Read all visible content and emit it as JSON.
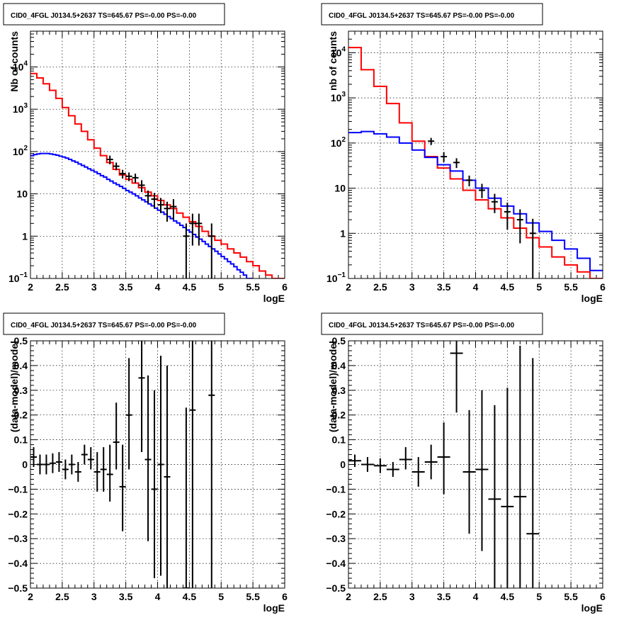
{
  "chart_data": [
    {
      "id": "tl",
      "type": "line",
      "title": "CID0_4FGL J0134.5+2637 TS=645.67 PS=-0.00 PS=-0.00",
      "xlabel": "logE",
      "ylabel": "Nb of counts",
      "xlim": [
        2,
        6
      ],
      "ylim": [
        0.1,
        70000
      ],
      "yscale": "log",
      "grid": true,
      "xticks": [
        "2",
        "2.5",
        "3",
        "3.5",
        "4",
        "4.5",
        "5",
        "5.5",
        "6"
      ],
      "yticks": [
        {
          "value": 0.1,
          "label": "10",
          "sup": "−1"
        },
        {
          "value": 1,
          "label": "1",
          "sup": ""
        },
        {
          "value": 10,
          "label": "10",
          "sup": ""
        },
        {
          "value": 100,
          "label": "10",
          "sup": "2"
        },
        {
          "value": 1000,
          "label": "10",
          "sup": "3"
        },
        {
          "value": 10000,
          "label": "10",
          "sup": "4"
        }
      ],
      "series": [
        {
          "color": "#ff0000",
          "kind": "step",
          "edges_start": 2.0,
          "bin_width": 0.1,
          "values": [
            7000,
            5500,
            4000,
            2800,
            1800,
            1100,
            700,
            450,
            300,
            190,
            120,
            80,
            55,
            38,
            28,
            22,
            18,
            14,
            11,
            9,
            7,
            5.5,
            4.5,
            3.5,
            2.8,
            2.2,
            1.7,
            1.3,
            1.0,
            0.8,
            0.65,
            0.5,
            0.4,
            0.32,
            0.25,
            0.2,
            0.15,
            0.12,
            0.1,
            0.1
          ]
        },
        {
          "color": "#0000ff",
          "kind": "step",
          "edges_start": 2.0,
          "bin_width": 0.05,
          "values": [
            80,
            85,
            88,
            90,
            90,
            90,
            88,
            85,
            82,
            78,
            74,
            70,
            65,
            60,
            56,
            51,
            47,
            43,
            39,
            36,
            33,
            30,
            27,
            25,
            22,
            20,
            18,
            16.5,
            15,
            13.5,
            12,
            11,
            10,
            9,
            8,
            7.2,
            6.5,
            5.8,
            5.2,
            4.6,
            4.1,
            3.7,
            3.3,
            2.9,
            2.6,
            2.3,
            2.05,
            1.8,
            1.6,
            1.4,
            1.25,
            1.1,
            0.95,
            0.85,
            0.75,
            0.65,
            0.57,
            0.5,
            0.44,
            0.38,
            0.33,
            0.29,
            0.25,
            0.22,
            0.19,
            0.16,
            0.14,
            0.12,
            0.1,
            0.1
          ]
        },
        {
          "color": "#000000",
          "kind": "points",
          "points": [
            {
              "x": 3.25,
              "y": 65,
              "lo": 50,
              "hi": 80
            },
            {
              "x": 3.35,
              "y": 45,
              "lo": 36,
              "hi": 55
            },
            {
              "x": 3.45,
              "y": 30,
              "lo": 23,
              "hi": 37
            },
            {
              "x": 3.55,
              "y": 26,
              "lo": 20,
              "hi": 32
            },
            {
              "x": 3.65,
              "y": 24,
              "lo": 18,
              "hi": 30
            },
            {
              "x": 3.75,
              "y": 16,
              "lo": 11,
              "hi": 21
            },
            {
              "x": 3.85,
              "y": 9,
              "lo": 6,
              "hi": 12
            },
            {
              "x": 3.95,
              "y": 7.5,
              "lo": 4.5,
              "hi": 10.5
            },
            {
              "x": 4.05,
              "y": 5.5,
              "lo": 3.5,
              "hi": 8
            },
            {
              "x": 4.15,
              "y": 4.5,
              "lo": 2.2,
              "hi": 6.5
            },
            {
              "x": 4.25,
              "y": 5,
              "lo": 2.5,
              "hi": 7.5
            },
            {
              "x": 4.45,
              "y": 1,
              "lo": 0.1,
              "hi": 2
            },
            {
              "x": 4.55,
              "y": 2,
              "lo": 0.6,
              "hi": 3.4
            },
            {
              "x": 4.65,
              "y": 2,
              "lo": 0.6,
              "hi": 3.4
            },
            {
              "x": 4.85,
              "y": 1,
              "lo": 0.1,
              "hi": 2
            }
          ]
        }
      ]
    },
    {
      "id": "tr",
      "type": "line",
      "title": "CID0_4FGL J0134.5+2637 TS=645.67 PS=-0.00 PS=-0.00",
      "xlabel": "logE",
      "ylabel": "nb of counts",
      "xlim": [
        2,
        6
      ],
      "ylim": [
        0.1,
        30000
      ],
      "yscale": "log",
      "grid": true,
      "xticks": [
        "2",
        "2.5",
        "3",
        "3.5",
        "4",
        "4.5",
        "5",
        "5.5",
        "6"
      ],
      "yticks": [
        {
          "value": 0.1,
          "label": "10",
          "sup": "−1"
        },
        {
          "value": 1,
          "label": "1",
          "sup": ""
        },
        {
          "value": 10,
          "label": "10",
          "sup": ""
        },
        {
          "value": 100,
          "label": "10",
          "sup": "2"
        },
        {
          "value": 1000,
          "label": "10",
          "sup": "3"
        },
        {
          "value": 10000,
          "label": "10",
          "sup": "4"
        }
      ],
      "series": [
        {
          "color": "#ff0000",
          "kind": "step",
          "edges_start": 2.0,
          "bin_width": 0.2,
          "values": [
            13000,
            4200,
            1800,
            750,
            280,
            110,
            50,
            28,
            16,
            9,
            5.5,
            3.5,
            2.2,
            1.3,
            0.8,
            0.5,
            0.3,
            0.2,
            0.14,
            0.1
          ]
        },
        {
          "color": "#0000ff",
          "kind": "step",
          "edges_start": 2.0,
          "bin_width": 0.2,
          "values": [
            170,
            180,
            160,
            135,
            100,
            70,
            48,
            33,
            24,
            15,
            10,
            6,
            4,
            2.7,
            1.7,
            1.1,
            0.7,
            0.45,
            0.28,
            0.15
          ]
        },
        {
          "color": "#000000",
          "kind": "points",
          "points": [
            {
              "x": 3.3,
              "y": 110,
              "lo": 90,
              "hi": 130
            },
            {
              "x": 3.5,
              "y": 50,
              "lo": 38,
              "hi": 63
            },
            {
              "x": 3.7,
              "y": 37,
              "lo": 28,
              "hi": 46
            },
            {
              "x": 3.9,
              "y": 15,
              "lo": 11,
              "hi": 19
            },
            {
              "x": 4.1,
              "y": 9,
              "lo": 6,
              "hi": 12.5
            },
            {
              "x": 4.3,
              "y": 5,
              "lo": 2.8,
              "hi": 7.5
            },
            {
              "x": 4.5,
              "y": 3,
              "lo": 1.2,
              "hi": 4.8
            },
            {
              "x": 4.7,
              "y": 2,
              "lo": 0.6,
              "hi": 3.4
            },
            {
              "x": 4.9,
              "y": 1,
              "lo": 0.1,
              "hi": 2.1
            }
          ]
        }
      ]
    },
    {
      "id": "bl",
      "type": "scatter",
      "title": "CID0_4FGL J0134.5+2637 TS=645.67 PS=-0.00 PS=-0.00",
      "xlabel": "logE",
      "ylabel": "(data-model)/model",
      "xlim": [
        2,
        6
      ],
      "ylim": [
        -0.5,
        0.5
      ],
      "yscale": "linear",
      "grid": true,
      "xticks": [
        "2",
        "2.5",
        "3",
        "3.5",
        "4",
        "4.5",
        "5",
        "5.5",
        "6"
      ],
      "yticks": [
        {
          "value": -0.5,
          "label": "−0.5",
          "sup": ""
        },
        {
          "value": -0.4,
          "label": "−0.4",
          "sup": ""
        },
        {
          "value": -0.3,
          "label": "−0.3",
          "sup": ""
        },
        {
          "value": -0.2,
          "label": "−0.2",
          "sup": ""
        },
        {
          "value": -0.1,
          "label": "−0.1",
          "sup": ""
        },
        {
          "value": 0,
          "label": "0",
          "sup": ""
        },
        {
          "value": 0.1,
          "label": "0.1",
          "sup": ""
        },
        {
          "value": 0.2,
          "label": "0.2",
          "sup": ""
        },
        {
          "value": 0.3,
          "label": "0.3",
          "sup": ""
        },
        {
          "value": 0.4,
          "label": "0.4",
          "sup": ""
        },
        {
          "value": 0.5,
          "label": "0.5",
          "sup": ""
        }
      ],
      "series": [
        {
          "color": "#000000",
          "kind": "points",
          "halfwidth": 0.05,
          "points": [
            {
              "x": 2.05,
              "y": 0.03,
              "lo": -0.01,
              "hi": 0.07
            },
            {
              "x": 2.15,
              "y": 0.0,
              "lo": -0.04,
              "hi": 0.04
            },
            {
              "x": 2.25,
              "y": 0.0,
              "lo": -0.04,
              "hi": 0.04
            },
            {
              "x": 2.35,
              "y": 0.005,
              "lo": -0.035,
              "hi": 0.045
            },
            {
              "x": 2.45,
              "y": 0.01,
              "lo": -0.03,
              "hi": 0.05
            },
            {
              "x": 2.55,
              "y": -0.02,
              "lo": -0.06,
              "hi": 0.02
            },
            {
              "x": 2.65,
              "y": 0.0,
              "lo": -0.04,
              "hi": 0.04
            },
            {
              "x": 2.75,
              "y": -0.03,
              "lo": -0.07,
              "hi": 0.01
            },
            {
              "x": 2.85,
              "y": 0.04,
              "lo": 0.0,
              "hi": 0.08
            },
            {
              "x": 2.95,
              "y": 0.02,
              "lo": -0.02,
              "hi": 0.07
            },
            {
              "x": 3.05,
              "y": -0.03,
              "lo": -0.11,
              "hi": 0.05
            },
            {
              "x": 3.15,
              "y": -0.02,
              "lo": -0.11,
              "hi": 0.07
            },
            {
              "x": 3.25,
              "y": -0.04,
              "lo": -0.15,
              "hi": 0.08
            },
            {
              "x": 3.35,
              "y": 0.09,
              "lo": -0.02,
              "hi": 0.25
            },
            {
              "x": 3.45,
              "y": -0.09,
              "lo": -0.27,
              "hi": 0.08
            },
            {
              "x": 3.55,
              "y": 0.2,
              "lo": -0.02,
              "hi": 0.43
            },
            {
              "x": 3.75,
              "y": 0.35,
              "lo": 0.05,
              "hi": 0.5
            },
            {
              "x": 3.85,
              "y": 0.02,
              "lo": -0.31,
              "hi": 0.36
            },
            {
              "x": 3.95,
              "y": -0.1,
              "lo": -0.46,
              "hi": 0.3
            },
            {
              "x": 4.05,
              "y": 0.0,
              "lo": -0.45,
              "hi": 0.44
            },
            {
              "x": 4.15,
              "y": -0.05,
              "lo": -0.5,
              "hi": 0.4
            },
            {
              "x": 4.45,
              "y": -0.5,
              "lo": -0.5,
              "hi": 0.23
            },
            {
              "x": 4.55,
              "y": 0.22,
              "lo": -0.5,
              "hi": 0.5
            },
            {
              "x": 4.85,
              "y": 0.28,
              "lo": -0.5,
              "hi": 0.5
            }
          ]
        }
      ]
    },
    {
      "id": "br",
      "type": "scatter",
      "title": "CID0_4FGL J0134.5+2637 TS=645.67 PS=-0.00 PS=-0.00",
      "xlabel": "logE",
      "ylabel": "(data-model)/model",
      "xlim": [
        2,
        6
      ],
      "ylim": [
        -0.5,
        0.5
      ],
      "yscale": "linear",
      "grid": true,
      "xticks": [
        "2",
        "2.5",
        "3",
        "3.5",
        "4",
        "4.5",
        "5",
        "5.5",
        "6"
      ],
      "yticks": [
        {
          "value": -0.5,
          "label": "−0.5",
          "sup": ""
        },
        {
          "value": -0.4,
          "label": "−0.4",
          "sup": ""
        },
        {
          "value": -0.3,
          "label": "−0.3",
          "sup": ""
        },
        {
          "value": -0.2,
          "label": "−0.2",
          "sup": ""
        },
        {
          "value": -0.1,
          "label": "−0.1",
          "sup": ""
        },
        {
          "value": 0,
          "label": "0",
          "sup": ""
        },
        {
          "value": 0.1,
          "label": "0.1",
          "sup": ""
        },
        {
          "value": 0.2,
          "label": "0.2",
          "sup": ""
        },
        {
          "value": 0.3,
          "label": "0.3",
          "sup": ""
        },
        {
          "value": 0.4,
          "label": "0.4",
          "sup": ""
        },
        {
          "value": 0.5,
          "label": "0.5",
          "sup": ""
        }
      ],
      "series": [
        {
          "color": "#000000",
          "kind": "points",
          "halfwidth": 0.1,
          "points": [
            {
              "x": 2.1,
              "y": 0.015,
              "lo": -0.01,
              "hi": 0.04
            },
            {
              "x": 2.3,
              "y": 0.0,
              "lo": -0.03,
              "hi": 0.03
            },
            {
              "x": 2.5,
              "y": -0.005,
              "lo": -0.035,
              "hi": 0.025
            },
            {
              "x": 2.7,
              "y": -0.02,
              "lo": -0.05,
              "hi": 0.01
            },
            {
              "x": 2.9,
              "y": 0.02,
              "lo": -0.02,
              "hi": 0.07
            },
            {
              "x": 3.1,
              "y": -0.03,
              "lo": -0.09,
              "hi": 0.03
            },
            {
              "x": 3.3,
              "y": 0.01,
              "lo": -0.06,
              "hi": 0.08
            },
            {
              "x": 3.5,
              "y": 0.03,
              "lo": -0.12,
              "hi": 0.17
            },
            {
              "x": 3.7,
              "y": 0.45,
              "lo": 0.21,
              "hi": 0.5
            },
            {
              "x": 3.9,
              "y": -0.03,
              "lo": -0.28,
              "hi": 0.22
            },
            {
              "x": 4.1,
              "y": -0.02,
              "lo": -0.35,
              "hi": 0.3
            },
            {
              "x": 4.3,
              "y": -0.14,
              "lo": -0.5,
              "hi": 0.24
            },
            {
              "x": 4.5,
              "y": -0.17,
              "lo": -0.5,
              "hi": 0.31
            },
            {
              "x": 4.7,
              "y": -0.13,
              "lo": -0.5,
              "hi": 0.48
            },
            {
              "x": 4.9,
              "y": -0.28,
              "lo": -0.5,
              "hi": 0.43
            }
          ]
        }
      ]
    }
  ]
}
